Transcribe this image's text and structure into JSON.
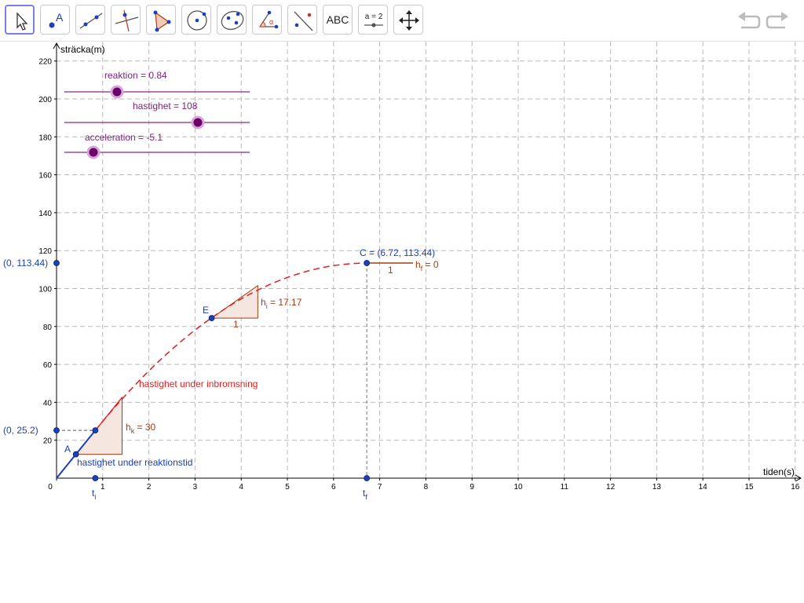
{
  "toolbar": {
    "tools": [
      {
        "name": "move-tool",
        "icon": "cursor-arrow-icon",
        "active": true
      },
      {
        "name": "point-tool",
        "icon": "point-icon",
        "label": "A"
      },
      {
        "name": "line-tool",
        "icon": "line-through-points-icon"
      },
      {
        "name": "perpendicular-tool",
        "icon": "perpendicular-line-icon"
      },
      {
        "name": "polygon-tool",
        "icon": "polygon-icon"
      },
      {
        "name": "circle-tool",
        "icon": "circle-center-point-icon"
      },
      {
        "name": "conic-tool",
        "icon": "ellipse-icon"
      },
      {
        "name": "angle-tool",
        "icon": "angle-icon",
        "label": "α"
      },
      {
        "name": "reflect-tool",
        "icon": "reflect-about-line-icon"
      },
      {
        "name": "text-tool",
        "icon": "text-icon",
        "label": "ABC"
      },
      {
        "name": "slider-tool",
        "icon": "slider-icon",
        "label": "a = 2"
      },
      {
        "name": "move-graphics-tool",
        "icon": "move-graphics-icon"
      }
    ],
    "undo_icon": "undo-icon",
    "redo_icon": "redo-icon"
  },
  "graph": {
    "x_axis_label": "tiden(s)",
    "y_axis_label": "sträcka(m)",
    "x_ticks": [
      "0",
      "1",
      "2",
      "3",
      "4",
      "5",
      "6",
      "7",
      "8",
      "9",
      "10",
      "11",
      "12",
      "13",
      "14",
      "15",
      "16"
    ],
    "y_ticks": [
      "20",
      "40",
      "60",
      "80",
      "100",
      "120",
      "140",
      "160",
      "180",
      "200",
      "220"
    ],
    "x_range": [
      0,
      16
    ],
    "y_range": [
      0,
      220
    ],
    "grid": true,
    "colors": {
      "blue": "#1a3fbf",
      "red": "#e02020",
      "purple": "#7a1f7a",
      "brown": "#a43c12",
      "grid": "#b8b8b8",
      "triangle_fill": "#f5e6e0"
    }
  },
  "sliders": [
    {
      "id": "reaktion",
      "label": "reaktion = 0.84",
      "value": 0.84,
      "fraction": 0.285
    },
    {
      "id": "hastighet",
      "label": "hastighet = 108",
      "value": 108,
      "fraction": 0.72
    },
    {
      "id": "acceleration",
      "label": "acceleration = -5.1",
      "value": -5.1,
      "fraction": 0.155
    }
  ],
  "points": {
    "A": {
      "label": "A",
      "x": 0.42,
      "y": 12.6
    },
    "reaction_end": {
      "x": 0.84,
      "y": 25.2
    },
    "E": {
      "label": "E",
      "x": 3.36,
      "y": 84.4
    },
    "C": {
      "label": "C = (6.72, 113.44)",
      "x": 6.72,
      "y": 113.44
    },
    "t_i": {
      "label": "t",
      "sub": "i",
      "x": 0.84,
      "y": 0
    },
    "t_f": {
      "label": "t",
      "sub": "f",
      "x": 6.72,
      "y": 0
    },
    "y1": {
      "label": "(0, 25.2)",
      "x": 0,
      "y": 25.2
    },
    "y2": {
      "label": "(0, 113.44)",
      "x": 0,
      "y": 113.44
    }
  },
  "annotations": {
    "reaction_segment_label": "hastighet under reaktionstid",
    "braking_curve_label": "hastighet under inbromsning",
    "slope_k": {
      "h": "h",
      "sub": "k",
      "value": " = 30",
      "one": "1"
    },
    "slope_i": {
      "h": "h",
      "sub": "i",
      "value": " = 17.17",
      "one": "1"
    },
    "slope_f": {
      "h": "h",
      "sub": "f",
      "value": " = 0",
      "one": "1"
    }
  }
}
